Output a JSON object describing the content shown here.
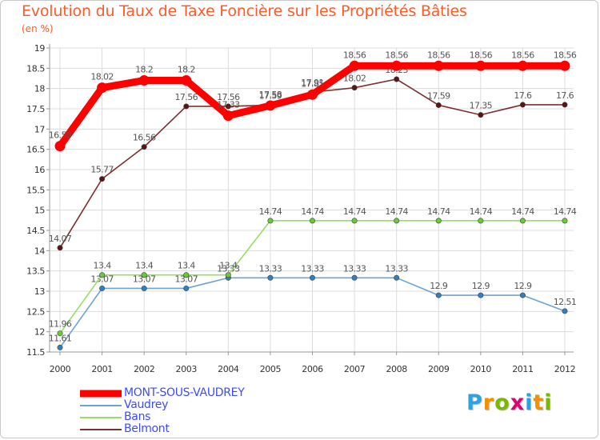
{
  "header": {
    "title": "Evolution du Taux de Taxe Foncière sur les Propriétés Bâties",
    "subtitle": "(en %)"
  },
  "brand": {
    "letters": [
      "P",
      "r",
      "o",
      "x",
      "i",
      "t",
      "i"
    ],
    "colors": [
      "#2aa3e0",
      "#f29100",
      "#7ab800",
      "#e2007a",
      "#2aa3e0",
      "#f29100",
      "#7ab800"
    ]
  },
  "chart_data": {
    "type": "line",
    "title": "Evolution du Taux de Taxe Foncière sur les Propriétés Bâties",
    "ylabel": "(en %)",
    "xlabel": "",
    "ylim": [
      11.5,
      19
    ],
    "yticks": [
      "11.5",
      "12",
      "12.5",
      "13",
      "13.5",
      "14",
      "14.5",
      "15",
      "15.5",
      "16",
      "16.5",
      "17",
      "17.5",
      "18",
      "18.5",
      "19"
    ],
    "categories": [
      "2000",
      "2001",
      "2002",
      "2003",
      "2004",
      "2005",
      "2006",
      "2007",
      "2008",
      "2009",
      "2010",
      "2011",
      "2012"
    ],
    "grid": true,
    "legend_position": "bottom-left",
    "series": [
      {
        "name": "Vaudrey",
        "color": "#6da3d4",
        "marker": "#2f7fc2",
        "values": [
          11.61,
          13.07,
          13.07,
          13.07,
          13.33,
          13.33,
          13.33,
          13.33,
          13.33,
          12.9,
          12.9,
          12.9,
          12.51
        ],
        "labels": [
          "11.61",
          "13.07",
          "13.07",
          "13.07",
          "13.33",
          "13.33",
          "13.33",
          "13.33",
          "13.33",
          "12.9",
          "12.9",
          "12.9",
          "12.51"
        ]
      },
      {
        "name": "Bans",
        "color": "#99dd66",
        "marker": "#66cc33",
        "values": [
          11.96,
          13.4,
          13.4,
          13.4,
          13.4,
          14.74,
          14.74,
          14.74,
          14.74,
          14.74,
          14.74,
          14.74,
          14.74
        ],
        "labels": [
          "11.96",
          "13.4",
          "13.4",
          "13.4",
          "13.4",
          "14.74",
          "14.74",
          "14.74",
          "14.74",
          "14.74",
          "14.74",
          "14.74",
          "14.74"
        ]
      },
      {
        "name": "Belmont",
        "color": "#7a3030",
        "marker": "#5a1414",
        "values": [
          14.07,
          15.77,
          16.56,
          17.56,
          17.56,
          17.59,
          17.91,
          18.02,
          18.23,
          17.59,
          17.35,
          17.6,
          17.6
        ],
        "labels": [
          "14.07",
          "15.77",
          "16.56",
          "17.56",
          "17.56",
          "17.59",
          "17.91",
          "18.02",
          "18.23",
          "17.59",
          "17.35",
          "17.6",
          "17.6"
        ]
      },
      {
        "name": "MONT-SOUS-VAUDREY",
        "color": "#ff0000",
        "marker": "#ff0000",
        "values": [
          16.58,
          18.02,
          18.2,
          18.2,
          17.33,
          17.58,
          17.85,
          18.56,
          18.56,
          18.56,
          18.56,
          18.56,
          18.56
        ],
        "labels": [
          "16.58",
          "18.02",
          "18.2",
          "18.2",
          "17.33",
          "17.58",
          "17.85",
          "18.56",
          "18.56",
          "18.56",
          "18.56",
          "18.56",
          "18.56"
        ]
      }
    ],
    "legend": [
      {
        "name": "MONT-SOUS-VAUDREY",
        "color": "#ff0000"
      },
      {
        "name": "Vaudrey",
        "color": "#6da3d4"
      },
      {
        "name": "Bans",
        "color": "#99dd66"
      },
      {
        "name": "Belmont",
        "color": "#7a3030"
      }
    ]
  }
}
